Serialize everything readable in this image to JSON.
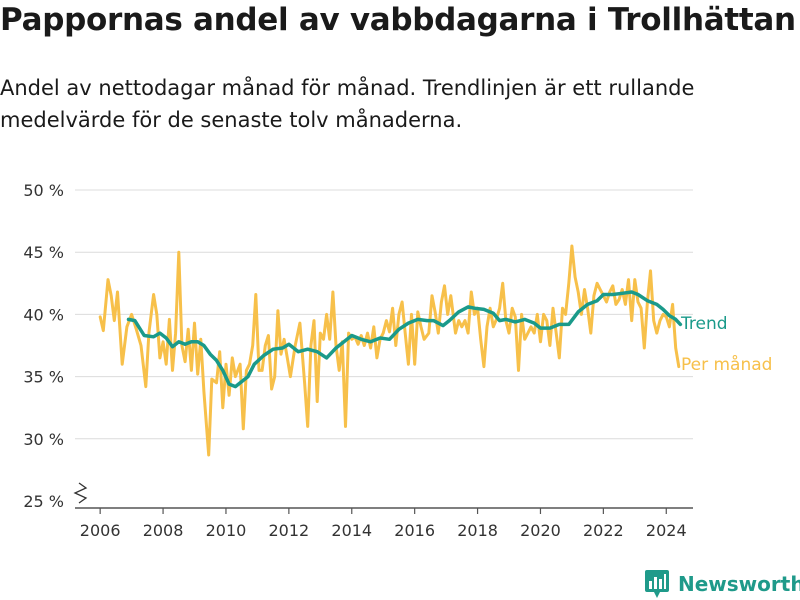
{
  "title": "Pappornas andel av vabbdagarna i Trollhättan",
  "subtitle": "Andel av nettodagar månad för månad. Trendlinjen är ett rullande medelvärde för de senaste tolv månaderna.",
  "brand": {
    "name": "Newsworthy",
    "icon": "newsworthy-logo-icon",
    "color": "#1f9a8a"
  },
  "chart_data": {
    "type": "line",
    "x_axis": {
      "ticks": [
        "2006",
        "2008",
        "2010",
        "2012",
        "2014",
        "2016",
        "2018",
        "2020",
        "2022",
        "2024"
      ],
      "range": [
        2005.2,
        2024.85
      ]
    },
    "y_axis": {
      "ticks": [
        "25 %",
        "30 %",
        "35 %",
        "40 %",
        "45 %",
        "50 %"
      ],
      "range": [
        25,
        50
      ],
      "broken_axis": true
    },
    "grid": "horizontal",
    "series": [
      {
        "name": "Trend",
        "color": "#1a9a8a",
        "points": [
          [
            2006.9,
            39.6
          ],
          [
            2007.1,
            39.5
          ],
          [
            2007.4,
            38.3
          ],
          [
            2007.7,
            38.2
          ],
          [
            2007.9,
            38.5
          ],
          [
            2008.1,
            38.1
          ],
          [
            2008.3,
            37.4
          ],
          [
            2008.5,
            37.8
          ],
          [
            2008.7,
            37.6
          ],
          [
            2008.9,
            37.8
          ],
          [
            2009.1,
            37.8
          ],
          [
            2009.3,
            37.5
          ],
          [
            2009.5,
            36.8
          ],
          [
            2009.7,
            36.3
          ],
          [
            2009.9,
            35.5
          ],
          [
            2010.1,
            34.4
          ],
          [
            2010.3,
            34.2
          ],
          [
            2010.5,
            34.6
          ],
          [
            2010.7,
            35.0
          ],
          [
            2010.9,
            36.0
          ],
          [
            2011.2,
            36.7
          ],
          [
            2011.5,
            37.2
          ],
          [
            2011.8,
            37.3
          ],
          [
            2012.0,
            37.6
          ],
          [
            2012.3,
            37.0
          ],
          [
            2012.6,
            37.2
          ],
          [
            2012.9,
            37.0
          ],
          [
            2013.2,
            36.5
          ],
          [
            2013.5,
            37.3
          ],
          [
            2013.8,
            37.9
          ],
          [
            2014.0,
            38.3
          ],
          [
            2014.3,
            38.0
          ],
          [
            2014.6,
            37.8
          ],
          [
            2014.9,
            38.1
          ],
          [
            2015.2,
            38.0
          ],
          [
            2015.5,
            38.8
          ],
          [
            2015.8,
            39.3
          ],
          [
            2016.1,
            39.6
          ],
          [
            2016.4,
            39.5
          ],
          [
            2016.6,
            39.5
          ],
          [
            2016.9,
            39.1
          ],
          [
            2017.1,
            39.5
          ],
          [
            2017.4,
            40.2
          ],
          [
            2017.7,
            40.6
          ],
          [
            2017.9,
            40.5
          ],
          [
            2018.2,
            40.4
          ],
          [
            2018.5,
            40.1
          ],
          [
            2018.7,
            39.5
          ],
          [
            2018.9,
            39.6
          ],
          [
            2019.2,
            39.4
          ],
          [
            2019.5,
            39.6
          ],
          [
            2019.8,
            39.3
          ],
          [
            2020.0,
            38.9
          ],
          [
            2020.3,
            38.9
          ],
          [
            2020.6,
            39.2
          ],
          [
            2020.9,
            39.2
          ],
          [
            2021.2,
            40.2
          ],
          [
            2021.5,
            40.8
          ],
          [
            2021.8,
            41.1
          ],
          [
            2022.0,
            41.6
          ],
          [
            2022.3,
            41.6
          ],
          [
            2022.6,
            41.7
          ],
          [
            2022.9,
            41.8
          ],
          [
            2023.1,
            41.6
          ],
          [
            2023.4,
            41.1
          ],
          [
            2023.7,
            40.8
          ],
          [
            2023.9,
            40.4
          ],
          [
            2024.1,
            39.9
          ],
          [
            2024.3,
            39.6
          ],
          [
            2024.45,
            39.2
          ]
        ]
      },
      {
        "name": "Per månad",
        "color": "#f7c04a",
        "points": [
          [
            2006.0,
            39.8
          ],
          [
            2006.1,
            38.7
          ],
          [
            2006.25,
            42.8
          ],
          [
            2006.35,
            41.5
          ],
          [
            2006.45,
            39.5
          ],
          [
            2006.55,
            41.8
          ],
          [
            2006.7,
            36.0
          ],
          [
            2006.85,
            39.0
          ],
          [
            2007.0,
            40.0
          ],
          [
            2007.15,
            38.8
          ],
          [
            2007.3,
            37.5
          ],
          [
            2007.45,
            34.2
          ],
          [
            2007.55,
            38.5
          ],
          [
            2007.7,
            41.6
          ],
          [
            2007.8,
            40.0
          ],
          [
            2007.9,
            36.5
          ],
          [
            2008.0,
            37.8
          ],
          [
            2008.1,
            36.0
          ],
          [
            2008.2,
            39.6
          ],
          [
            2008.3,
            35.5
          ],
          [
            2008.4,
            38.5
          ],
          [
            2008.5,
            45.0
          ],
          [
            2008.6,
            37.5
          ],
          [
            2008.7,
            36.2
          ],
          [
            2008.8,
            38.8
          ],
          [
            2008.9,
            35.5
          ],
          [
            2009.0,
            39.3
          ],
          [
            2009.1,
            35.2
          ],
          [
            2009.2,
            38.0
          ],
          [
            2009.3,
            33.8
          ],
          [
            2009.45,
            28.7
          ],
          [
            2009.55,
            34.8
          ],
          [
            2009.7,
            34.5
          ],
          [
            2009.8,
            37.0
          ],
          [
            2009.9,
            32.5
          ],
          [
            2010.0,
            36.0
          ],
          [
            2010.1,
            33.5
          ],
          [
            2010.2,
            36.5
          ],
          [
            2010.3,
            35.0
          ],
          [
            2010.45,
            36.0
          ],
          [
            2010.55,
            30.8
          ],
          [
            2010.65,
            35.5
          ],
          [
            2010.75,
            36.0
          ],
          [
            2010.85,
            37.5
          ],
          [
            2010.95,
            41.6
          ],
          [
            2011.05,
            35.5
          ],
          [
            2011.15,
            35.5
          ],
          [
            2011.25,
            37.5
          ],
          [
            2011.35,
            38.3
          ],
          [
            2011.45,
            34.0
          ],
          [
            2011.55,
            35.0
          ],
          [
            2011.65,
            40.3
          ],
          [
            2011.75,
            36.8
          ],
          [
            2011.85,
            38.0
          ],
          [
            2011.95,
            36.5
          ],
          [
            2012.05,
            35.0
          ],
          [
            2012.2,
            37.5
          ],
          [
            2012.35,
            39.3
          ],
          [
            2012.5,
            34.5
          ],
          [
            2012.6,
            31.0
          ],
          [
            2012.7,
            37.5
          ],
          [
            2012.8,
            39.5
          ],
          [
            2012.9,
            33.0
          ],
          [
            2013.0,
            38.5
          ],
          [
            2013.1,
            38.0
          ],
          [
            2013.2,
            40.0
          ],
          [
            2013.3,
            38.0
          ],
          [
            2013.4,
            41.8
          ],
          [
            2013.5,
            37.5
          ],
          [
            2013.6,
            35.5
          ],
          [
            2013.7,
            37.8
          ],
          [
            2013.8,
            31.0
          ],
          [
            2013.9,
            38.5
          ],
          [
            2014.0,
            38.0
          ],
          [
            2014.1,
            38.2
          ],
          [
            2014.2,
            37.6
          ],
          [
            2014.3,
            38.3
          ],
          [
            2014.4,
            37.5
          ],
          [
            2014.5,
            38.5
          ],
          [
            2014.6,
            37.3
          ],
          [
            2014.7,
            39.0
          ],
          [
            2014.8,
            36.5
          ],
          [
            2014.9,
            38.0
          ],
          [
            2015.0,
            38.5
          ],
          [
            2015.1,
            39.5
          ],
          [
            2015.2,
            38.6
          ],
          [
            2015.3,
            40.5
          ],
          [
            2015.4,
            37.5
          ],
          [
            2015.5,
            40.0
          ],
          [
            2015.6,
            41.0
          ],
          [
            2015.7,
            38.5
          ],
          [
            2015.8,
            36.0
          ],
          [
            2015.9,
            40.0
          ],
          [
            2016.0,
            36.0
          ],
          [
            2016.1,
            40.2
          ],
          [
            2016.2,
            39.0
          ],
          [
            2016.3,
            38.0
          ],
          [
            2016.45,
            38.5
          ],
          [
            2016.55,
            41.5
          ],
          [
            2016.65,
            40.2
          ],
          [
            2016.75,
            38.5
          ],
          [
            2016.85,
            41.0
          ],
          [
            2016.95,
            42.3
          ],
          [
            2017.05,
            40.0
          ],
          [
            2017.15,
            41.5
          ],
          [
            2017.3,
            38.5
          ],
          [
            2017.4,
            39.5
          ],
          [
            2017.5,
            39.0
          ],
          [
            2017.6,
            39.5
          ],
          [
            2017.7,
            38.5
          ],
          [
            2017.8,
            41.8
          ],
          [
            2017.9,
            40.0
          ],
          [
            2018.0,
            40.5
          ],
          [
            2018.1,
            38.0
          ],
          [
            2018.2,
            35.8
          ],
          [
            2018.3,
            39.0
          ],
          [
            2018.4,
            40.5
          ],
          [
            2018.5,
            39.0
          ],
          [
            2018.6,
            39.6
          ],
          [
            2018.7,
            40.5
          ],
          [
            2018.8,
            42.5
          ],
          [
            2018.9,
            39.5
          ],
          [
            2019.0,
            38.5
          ],
          [
            2019.1,
            40.5
          ],
          [
            2019.2,
            39.8
          ],
          [
            2019.3,
            35.5
          ],
          [
            2019.4,
            40.0
          ],
          [
            2019.5,
            38.0
          ],
          [
            2019.6,
            38.5
          ],
          [
            2019.7,
            39.0
          ],
          [
            2019.8,
            38.5
          ],
          [
            2019.9,
            40.0
          ],
          [
            2020.0,
            37.8
          ],
          [
            2020.1,
            40.0
          ],
          [
            2020.2,
            39.5
          ],
          [
            2020.3,
            37.5
          ],
          [
            2020.4,
            40.5
          ],
          [
            2020.5,
            38.5
          ],
          [
            2020.6,
            36.5
          ],
          [
            2020.7,
            40.5
          ],
          [
            2020.8,
            40.0
          ],
          [
            2020.9,
            42.5
          ],
          [
            2021.0,
            45.5
          ],
          [
            2021.1,
            43.0
          ],
          [
            2021.2,
            41.8
          ],
          [
            2021.3,
            40.0
          ],
          [
            2021.4,
            42.0
          ],
          [
            2021.5,
            40.5
          ],
          [
            2021.6,
            38.5
          ],
          [
            2021.7,
            41.5
          ],
          [
            2021.8,
            42.5
          ],
          [
            2021.9,
            42.0
          ],
          [
            2022.0,
            41.5
          ],
          [
            2022.1,
            41.0
          ],
          [
            2022.2,
            41.8
          ],
          [
            2022.3,
            42.3
          ],
          [
            2022.4,
            40.8
          ],
          [
            2022.5,
            41.2
          ],
          [
            2022.6,
            42.0
          ],
          [
            2022.7,
            40.8
          ],
          [
            2022.8,
            42.8
          ],
          [
            2022.9,
            39.5
          ],
          [
            2023.0,
            42.8
          ],
          [
            2023.1,
            41.0
          ],
          [
            2023.2,
            40.5
          ],
          [
            2023.3,
            37.3
          ],
          [
            2023.4,
            41.0
          ],
          [
            2023.5,
            43.5
          ],
          [
            2023.6,
            39.5
          ],
          [
            2023.7,
            38.5
          ],
          [
            2023.8,
            39.5
          ],
          [
            2023.9,
            40.0
          ],
          [
            2024.0,
            39.8
          ],
          [
            2024.1,
            39.0
          ],
          [
            2024.2,
            40.8
          ],
          [
            2024.3,
            37.3
          ],
          [
            2024.4,
            35.8
          ]
        ]
      }
    ]
  }
}
